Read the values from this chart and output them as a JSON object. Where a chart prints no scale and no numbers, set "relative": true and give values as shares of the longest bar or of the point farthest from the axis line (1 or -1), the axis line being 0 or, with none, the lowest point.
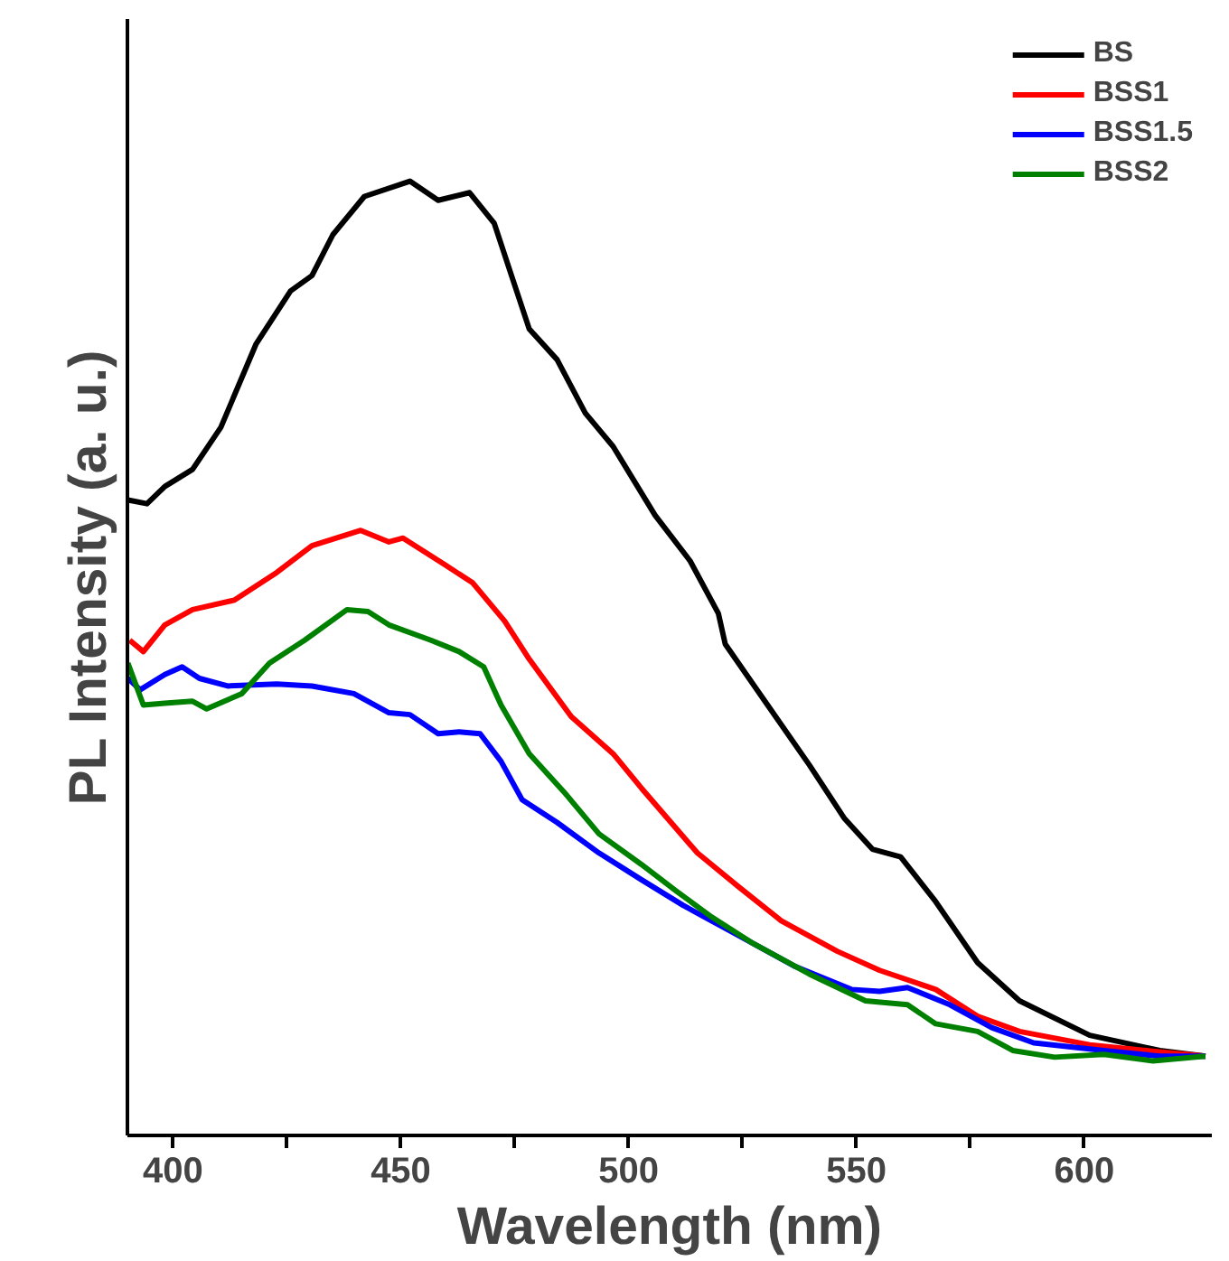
{
  "chart_data": {
    "type": "line",
    "relative": true,
    "xlabel": "Wavelength (nm)",
    "ylabel": "PL Intensity (a. u.)",
    "xlim": [
      390,
      628
    ],
    "xticks": [
      400,
      {
        "value": 425,
        "label": null
      },
      450,
      {
        "value": 475,
        "label": null
      },
      500,
      {
        "value": 525,
        "label": null
      },
      550,
      {
        "value": 575,
        "label": null
      },
      600
    ],
    "legend": "top right",
    "grid": false,
    "marker": "none",
    "line_style": "solid",
    "series": [
      {
        "name": "BS",
        "color": "#000000",
        "x": [
          390.1,
          394.3,
          398.2,
          404.3,
          410.5,
          418.2,
          425.8,
          430.5,
          435.1,
          442.0,
          452.0,
          458.2,
          465.1,
          470.5,
          474.3,
          478.2,
          484.3,
          490.5,
          496.6,
          505.8,
          513.5,
          519.7,
          521.2,
          530.5,
          539.7,
          547.4,
          553.5,
          559.7,
          567.4,
          576.6,
          585.8,
          601.2,
          616.6,
          626.6
        ],
        "values": [
          0.666,
          0.662,
          0.68,
          0.698,
          0.742,
          0.829,
          0.885,
          0.901,
          0.944,
          0.984,
          1.0,
          0.98,
          0.988,
          0.956,
          0.901,
          0.845,
          0.813,
          0.757,
          0.722,
          0.65,
          0.602,
          0.547,
          0.515,
          0.451,
          0.388,
          0.332,
          0.3,
          0.292,
          0.245,
          0.181,
          0.141,
          0.105,
          0.089,
          0.083
        ]
      },
      {
        "name": "BSS1",
        "color": "#ff0000",
        "x": [
          390.5,
          393.5,
          398.2,
          404.3,
          413.5,
          422.8,
          430.5,
          441.2,
          447.4,
          450.5,
          459.7,
          465.8,
          472.8,
          478.2,
          487.4,
          496.6,
          502.8,
          515.1,
          524.3,
          533.5,
          545.8,
          555.1,
          567.4,
          576.6,
          585.8,
          601.2,
          613.5,
          626.6
        ],
        "values": [
          0.519,
          0.507,
          0.535,
          0.551,
          0.561,
          0.59,
          0.618,
          0.634,
          0.622,
          0.626,
          0.598,
          0.579,
          0.539,
          0.499,
          0.439,
          0.4,
          0.364,
          0.296,
          0.26,
          0.225,
          0.193,
          0.173,
          0.153,
          0.125,
          0.109,
          0.095,
          0.089,
          0.083
        ]
      },
      {
        "name": "BSS1.5",
        "color": "#0000ff",
        "x": [
          390.1,
          392.8,
          398.2,
          402.0,
          405.8,
          412.0,
          422.8,
          430.5,
          439.7,
          447.4,
          452.0,
          458.2,
          462.8,
          467.4,
          472.0,
          476.6,
          484.3,
          493.5,
          502.8,
          512.0,
          524.3,
          536.6,
          548.9,
          555.1,
          561.2,
          570.5,
          579.7,
          588.9,
          604.3,
          616.6,
          626.6
        ],
        "values": [
          0.479,
          0.467,
          0.483,
          0.491,
          0.479,
          0.471,
          0.473,
          0.471,
          0.463,
          0.443,
          0.441,
          0.421,
          0.423,
          0.421,
          0.392,
          0.352,
          0.328,
          0.296,
          0.268,
          0.241,
          0.209,
          0.177,
          0.153,
          0.151,
          0.155,
          0.137,
          0.113,
          0.097,
          0.089,
          0.083,
          0.083
        ]
      },
      {
        "name": "BSS2",
        "color": "#008000",
        "x": [
          390.1,
          393.5,
          398.2,
          404.3,
          407.4,
          415.1,
          421.2,
          428.9,
          438.2,
          442.8,
          447.4,
          456.6,
          462.8,
          468.2,
          472.0,
          478.2,
          485.8,
          493.5,
          502.8,
          510.5,
          518.2,
          527.4,
          539.7,
          552.0,
          561.2,
          567.4,
          576.6,
          584.3,
          593.5,
          604.3,
          615.1,
          626.6
        ],
        "values": [
          0.495,
          0.451,
          0.453,
          0.455,
          0.447,
          0.463,
          0.495,
          0.519,
          0.551,
          0.549,
          0.535,
          0.519,
          0.507,
          0.491,
          0.451,
          0.4,
          0.36,
          0.316,
          0.284,
          0.256,
          0.229,
          0.201,
          0.169,
          0.141,
          0.137,
          0.117,
          0.109,
          0.089,
          0.082,
          0.085,
          0.078,
          0.083
        ]
      }
    ]
  }
}
